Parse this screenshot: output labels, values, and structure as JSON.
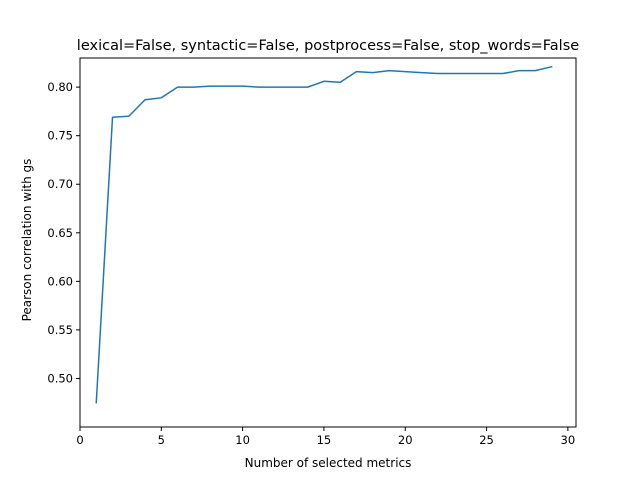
{
  "chart_data": {
    "type": "line",
    "title": "lexical=False, syntactic=False, postprocess=False, stop_words=False",
    "xlabel": "Number of selected metrics",
    "ylabel": "Pearson correlation with gs",
    "xlim": [
      0,
      30.5
    ],
    "ylim": [
      0.45,
      0.83
    ],
    "xticks": [
      0,
      5,
      10,
      15,
      20,
      25,
      30
    ],
    "yticks": [
      0.5,
      0.55,
      0.6,
      0.65,
      0.7,
      0.75,
      0.8
    ],
    "xtick_labels": [
      "0",
      "5",
      "10",
      "15",
      "20",
      "25",
      "30"
    ],
    "ytick_labels": [
      "0.50",
      "0.55",
      "0.60",
      "0.65",
      "0.70",
      "0.75",
      "0.80"
    ],
    "grid": false,
    "series": [
      {
        "color": "#1f77b4",
        "x": [
          1,
          2,
          3,
          4,
          5,
          6,
          7,
          8,
          9,
          10,
          11,
          12,
          13,
          14,
          15,
          16,
          17,
          18,
          19,
          20,
          21,
          22,
          23,
          24,
          25,
          26,
          27,
          28,
          29
        ],
        "y": [
          0.475,
          0.769,
          0.77,
          0.787,
          0.789,
          0.8,
          0.8,
          0.801,
          0.801,
          0.801,
          0.8,
          0.8,
          0.8,
          0.8,
          0.806,
          0.805,
          0.816,
          0.815,
          0.817,
          0.816,
          0.815,
          0.814,
          0.814,
          0.814,
          0.814,
          0.814,
          0.817,
          0.817,
          0.821
        ]
      }
    ]
  }
}
